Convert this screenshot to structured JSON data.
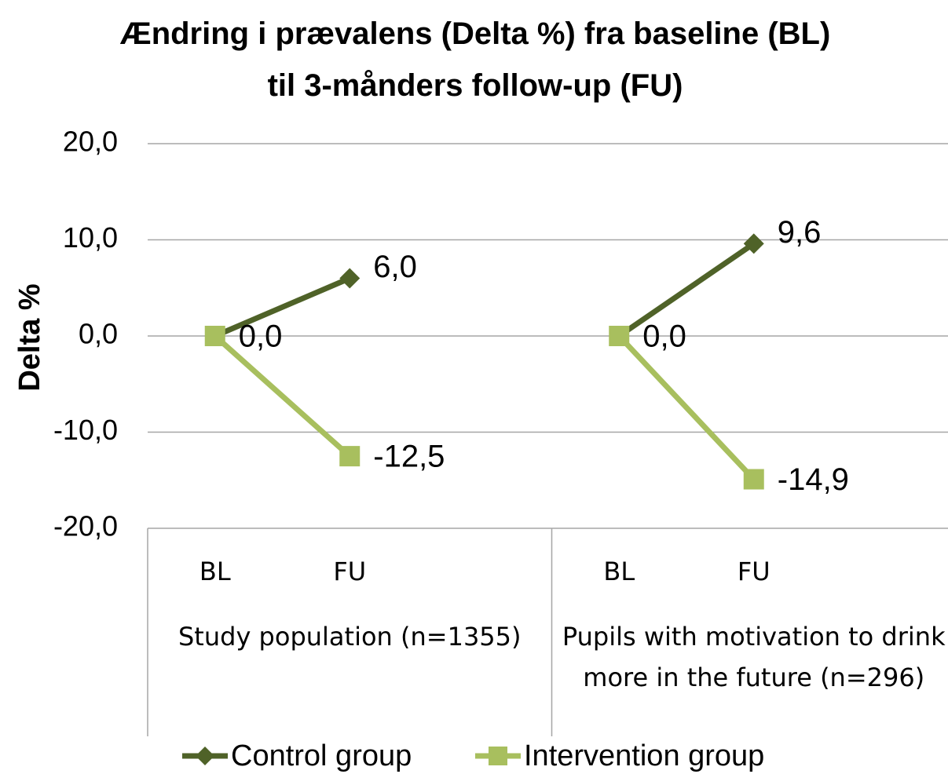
{
  "chart_data": {
    "type": "line",
    "title": "Ændring i prævalens (Delta %) fra baseline (BL) til 3-månders follow-up (FU)",
    "ylabel": "Delta %",
    "groups": [
      {
        "name": "Study population (n=1355)",
        "categories": [
          "BL",
          "FU"
        ]
      },
      {
        "name": "Pupils with motivation to drink more in the future (n=296)",
        "categories": [
          "BL",
          "FU"
        ]
      }
    ],
    "series": [
      {
        "name": "Control group",
        "color": "#4f6228",
        "marker": "diamond",
        "values": [
          [
            0,
            6.0
          ],
          [
            0,
            9.6
          ]
        ],
        "value_labels": [
          [
            "0,0",
            "6,0"
          ],
          [
            "0,0",
            "9,6"
          ]
        ]
      },
      {
        "name": "Intervention group",
        "color": "#a8bf5e",
        "marker": "square",
        "values": [
          [
            0,
            -12.5
          ],
          [
            0,
            -14.9
          ]
        ],
        "value_labels": [
          [
            null,
            "-12,5"
          ],
          [
            null,
            "-14,9"
          ]
        ]
      }
    ],
    "ylim": [
      -20,
      20
    ],
    "yticks": [
      {
        "value": -20,
        "label": "-20,0"
      },
      {
        "value": -10,
        "label": "-10,0"
      },
      {
        "value": 0,
        "label": "0,0"
      },
      {
        "value": 10,
        "label": "10,0"
      },
      {
        "value": 20,
        "label": "20,0"
      }
    ],
    "grid": true,
    "legend": "bottom"
  }
}
